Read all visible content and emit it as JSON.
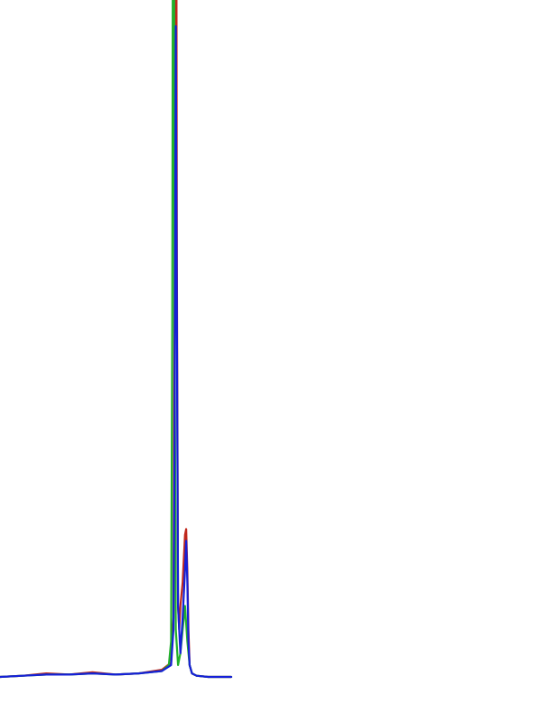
{
  "chart_data": {
    "type": "line",
    "title": "",
    "xlabel": "",
    "ylabel": "",
    "xlim": [
      0,
      1
    ],
    "ylim": [
      0,
      1
    ],
    "grid": false,
    "legend": "none",
    "series": [
      {
        "color": "#c0281c",
        "x": [
          0.0,
          0.1,
          0.2,
          0.3,
          0.4,
          0.5,
          0.6,
          0.7,
          0.74,
          0.75,
          0.755,
          0.76,
          0.765,
          0.77,
          0.775,
          0.78,
          0.79,
          0.8,
          0.805,
          0.81,
          0.815,
          0.82,
          0.83,
          0.85,
          0.9,
          1.0
        ],
        "y": [
          0.0,
          0.001,
          0.003,
          0.002,
          0.004,
          0.002,
          0.003,
          0.006,
          0.012,
          0.05,
          0.35,
          1.0,
          0.35,
          0.06,
          0.04,
          0.06,
          0.08,
          0.12,
          0.125,
          0.09,
          0.04,
          0.01,
          0.003,
          0.001,
          0.0,
          0.0
        ]
      },
      {
        "color": "#22b02a",
        "x": [
          0.0,
          0.1,
          0.2,
          0.3,
          0.4,
          0.5,
          0.6,
          0.7,
          0.73,
          0.74,
          0.745,
          0.75,
          0.755,
          0.76,
          0.77,
          0.78,
          0.79,
          0.8,
          0.81,
          0.82,
          0.83,
          0.85,
          0.9,
          1.0
        ],
        "y": [
          0.0,
          0.001,
          0.002,
          0.002,
          0.003,
          0.002,
          0.003,
          0.005,
          0.01,
          0.03,
          0.3,
          1.0,
          0.3,
          0.04,
          0.01,
          0.02,
          0.04,
          0.06,
          0.03,
          0.01,
          0.003,
          0.001,
          0.0,
          0.0
        ]
      },
      {
        "color": "#1520d8",
        "x": [
          0.0,
          0.1,
          0.2,
          0.3,
          0.4,
          0.5,
          0.6,
          0.7,
          0.74,
          0.75,
          0.755,
          0.76,
          0.765,
          0.77,
          0.78,
          0.79,
          0.8,
          0.805,
          0.81,
          0.815,
          0.82,
          0.83,
          0.85,
          0.9,
          1.0
        ],
        "y": [
          0.0,
          0.001,
          0.002,
          0.002,
          0.003,
          0.002,
          0.003,
          0.005,
          0.01,
          0.04,
          0.2,
          0.55,
          0.3,
          0.06,
          0.02,
          0.05,
          0.09,
          0.115,
          0.08,
          0.03,
          0.01,
          0.003,
          0.001,
          0.0,
          0.0
        ]
      }
    ]
  }
}
